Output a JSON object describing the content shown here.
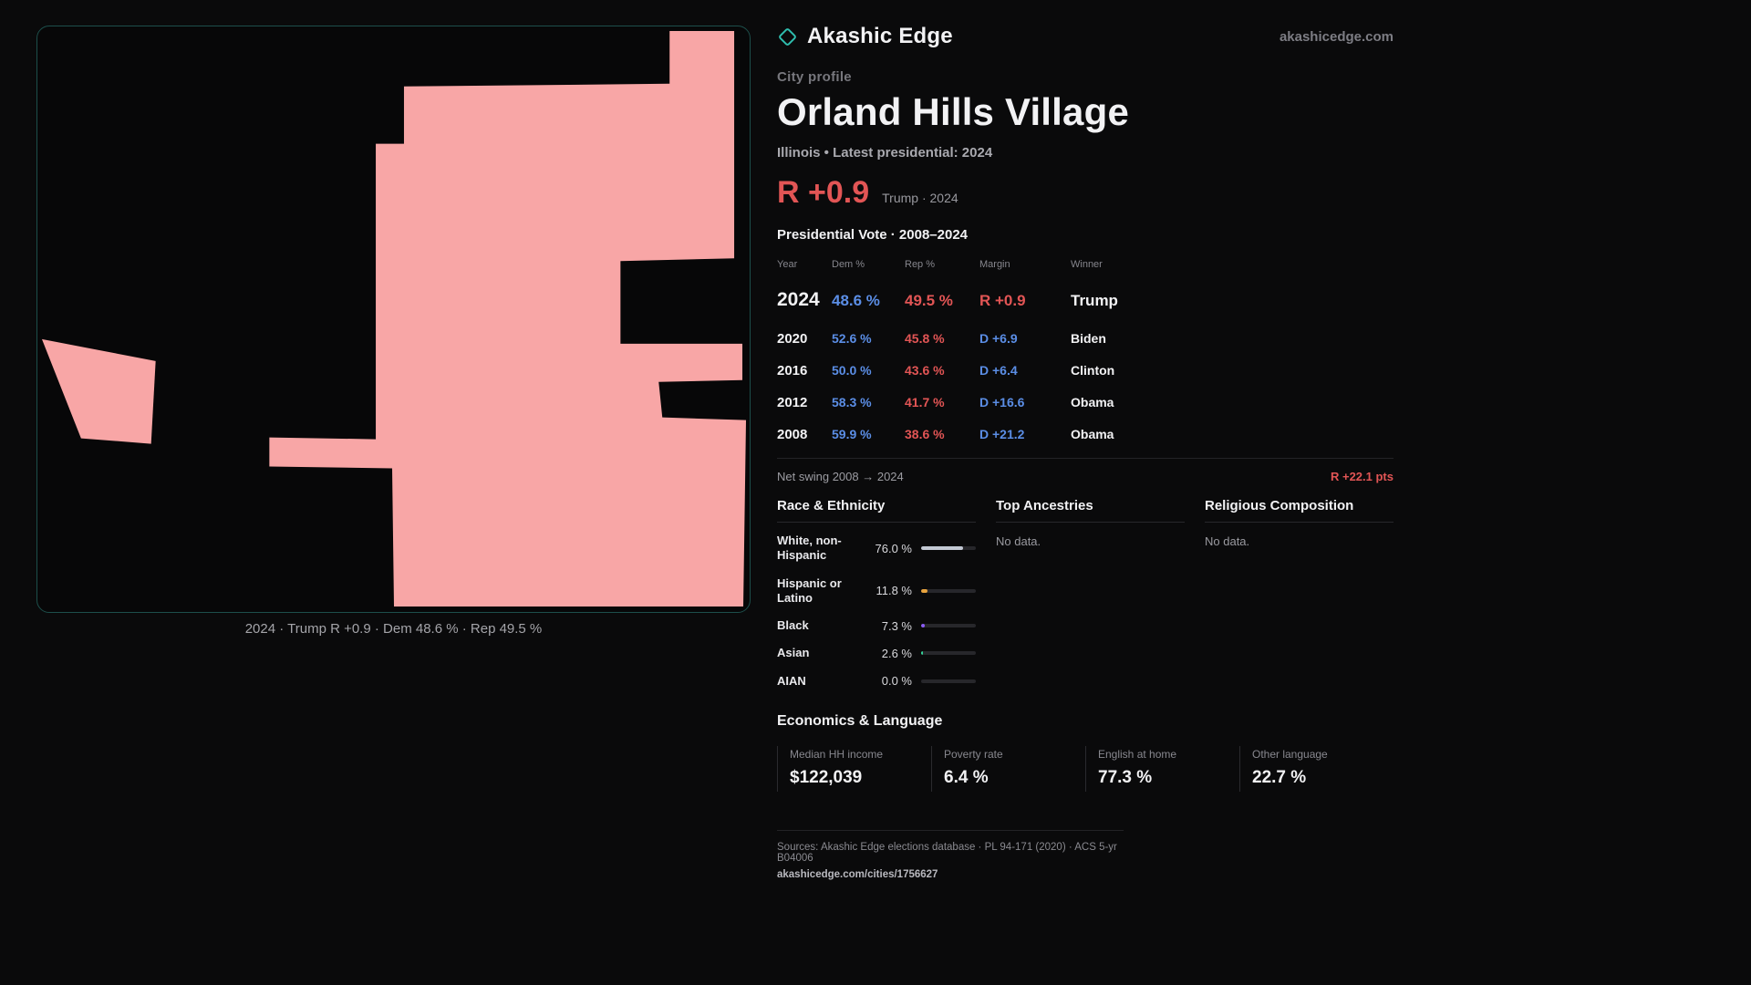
{
  "brand": {
    "name": "Akashic Edge",
    "domain": "akashicedge.com"
  },
  "profile": {
    "kicker": "City profile",
    "title": "Orland Hills Village",
    "subtitle": "Illinois • Latest presidential: 2024",
    "headline_margin": "R +0.9",
    "headline_detail": "Trump · 2024"
  },
  "map": {
    "fill": "#f8a6a6",
    "caption": "2024 · Trump R +0.9 · Dem 48.6 % · Rep 49.5 %"
  },
  "vote_table": {
    "title": "Presidential Vote · 2008–2024",
    "columns": [
      "Year",
      "Dem %",
      "Rep %",
      "Margin",
      "Winner"
    ],
    "rows": [
      {
        "year": "2024",
        "dem": "48.6 %",
        "rep": "49.5 %",
        "margin": "R +0.9",
        "margin_party": "R",
        "winner": "Trump"
      },
      {
        "year": "2020",
        "dem": "52.6 %",
        "rep": "45.8 %",
        "margin": "D +6.9",
        "margin_party": "D",
        "winner": "Biden"
      },
      {
        "year": "2016",
        "dem": "50.0 %",
        "rep": "43.6 %",
        "margin": "D +6.4",
        "margin_party": "D",
        "winner": "Clinton"
      },
      {
        "year": "2012",
        "dem": "58.3 %",
        "rep": "41.7 %",
        "margin": "D +16.6",
        "margin_party": "D",
        "winner": "Obama"
      },
      {
        "year": "2008",
        "dem": "59.9 %",
        "rep": "38.6 %",
        "margin": "D +21.2",
        "margin_party": "D",
        "winner": "Obama"
      }
    ],
    "net_swing_label": "Net swing 2008 → 2024",
    "net_swing_value": "R +22.1 pts"
  },
  "demographics": {
    "race": {
      "title": "Race & Ethnicity",
      "rows": [
        {
          "label": "White, non-Hispanic",
          "value": "76.0 %",
          "pct": 76.0,
          "color": "#c3c9d4"
        },
        {
          "label": "Hispanic or Latino",
          "value": "11.8 %",
          "pct": 11.8,
          "color": "#e8a33d"
        },
        {
          "label": "Black",
          "value": "7.3 %",
          "pct": 7.3,
          "color": "#8b5cf6"
        },
        {
          "label": "Asian",
          "value": "2.6 %",
          "pct": 2.6,
          "color": "#34d399"
        },
        {
          "label": "AIAN",
          "value": "0.0 %",
          "pct": 0.0,
          "color": "#9ca3af"
        }
      ]
    },
    "ancestries": {
      "title": "Top Ancestries",
      "empty": "No data."
    },
    "religion": {
      "title": "Religious Composition",
      "empty": "No data."
    }
  },
  "economics": {
    "title": "Economics & Language",
    "stats": [
      {
        "label": "Median HH income",
        "value": "$122,039"
      },
      {
        "label": "Poverty rate",
        "value": "6.4 %"
      },
      {
        "label": "English at home",
        "value": "77.3 %"
      },
      {
        "label": "Other language",
        "value": "22.7 %"
      }
    ]
  },
  "footer": {
    "sources": "Sources: Akashic Edge elections database · PL 94-171 (2020) · ACS 5-yr B04006",
    "link": "akashicedge.com/cities/1756627"
  }
}
